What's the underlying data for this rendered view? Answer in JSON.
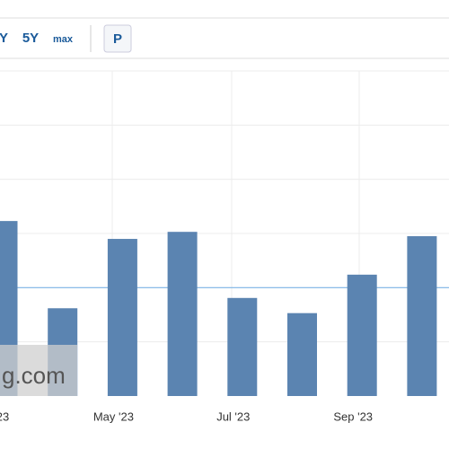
{
  "toolbar": {
    "buttons": [
      "Y",
      "5Y",
      "max"
    ],
    "toggle": "P"
  },
  "watermark": "g.com",
  "chart_data": {
    "type": "bar",
    "categories": [
      "23",
      null,
      "May '23",
      null,
      "Jul '23",
      null,
      "Sep '23",
      null
    ],
    "values": [
      3.23,
      1.62,
      2.9,
      3.03,
      1.81,
      1.53,
      2.24,
      2.95
    ],
    "color": "#5b84b1",
    "ylim": [
      0,
      6
    ],
    "yticks": [
      1,
      2,
      3,
      4,
      5,
      6
    ],
    "grid": true,
    "reference_line": 2,
    "reference_color": "#7db4e6"
  }
}
